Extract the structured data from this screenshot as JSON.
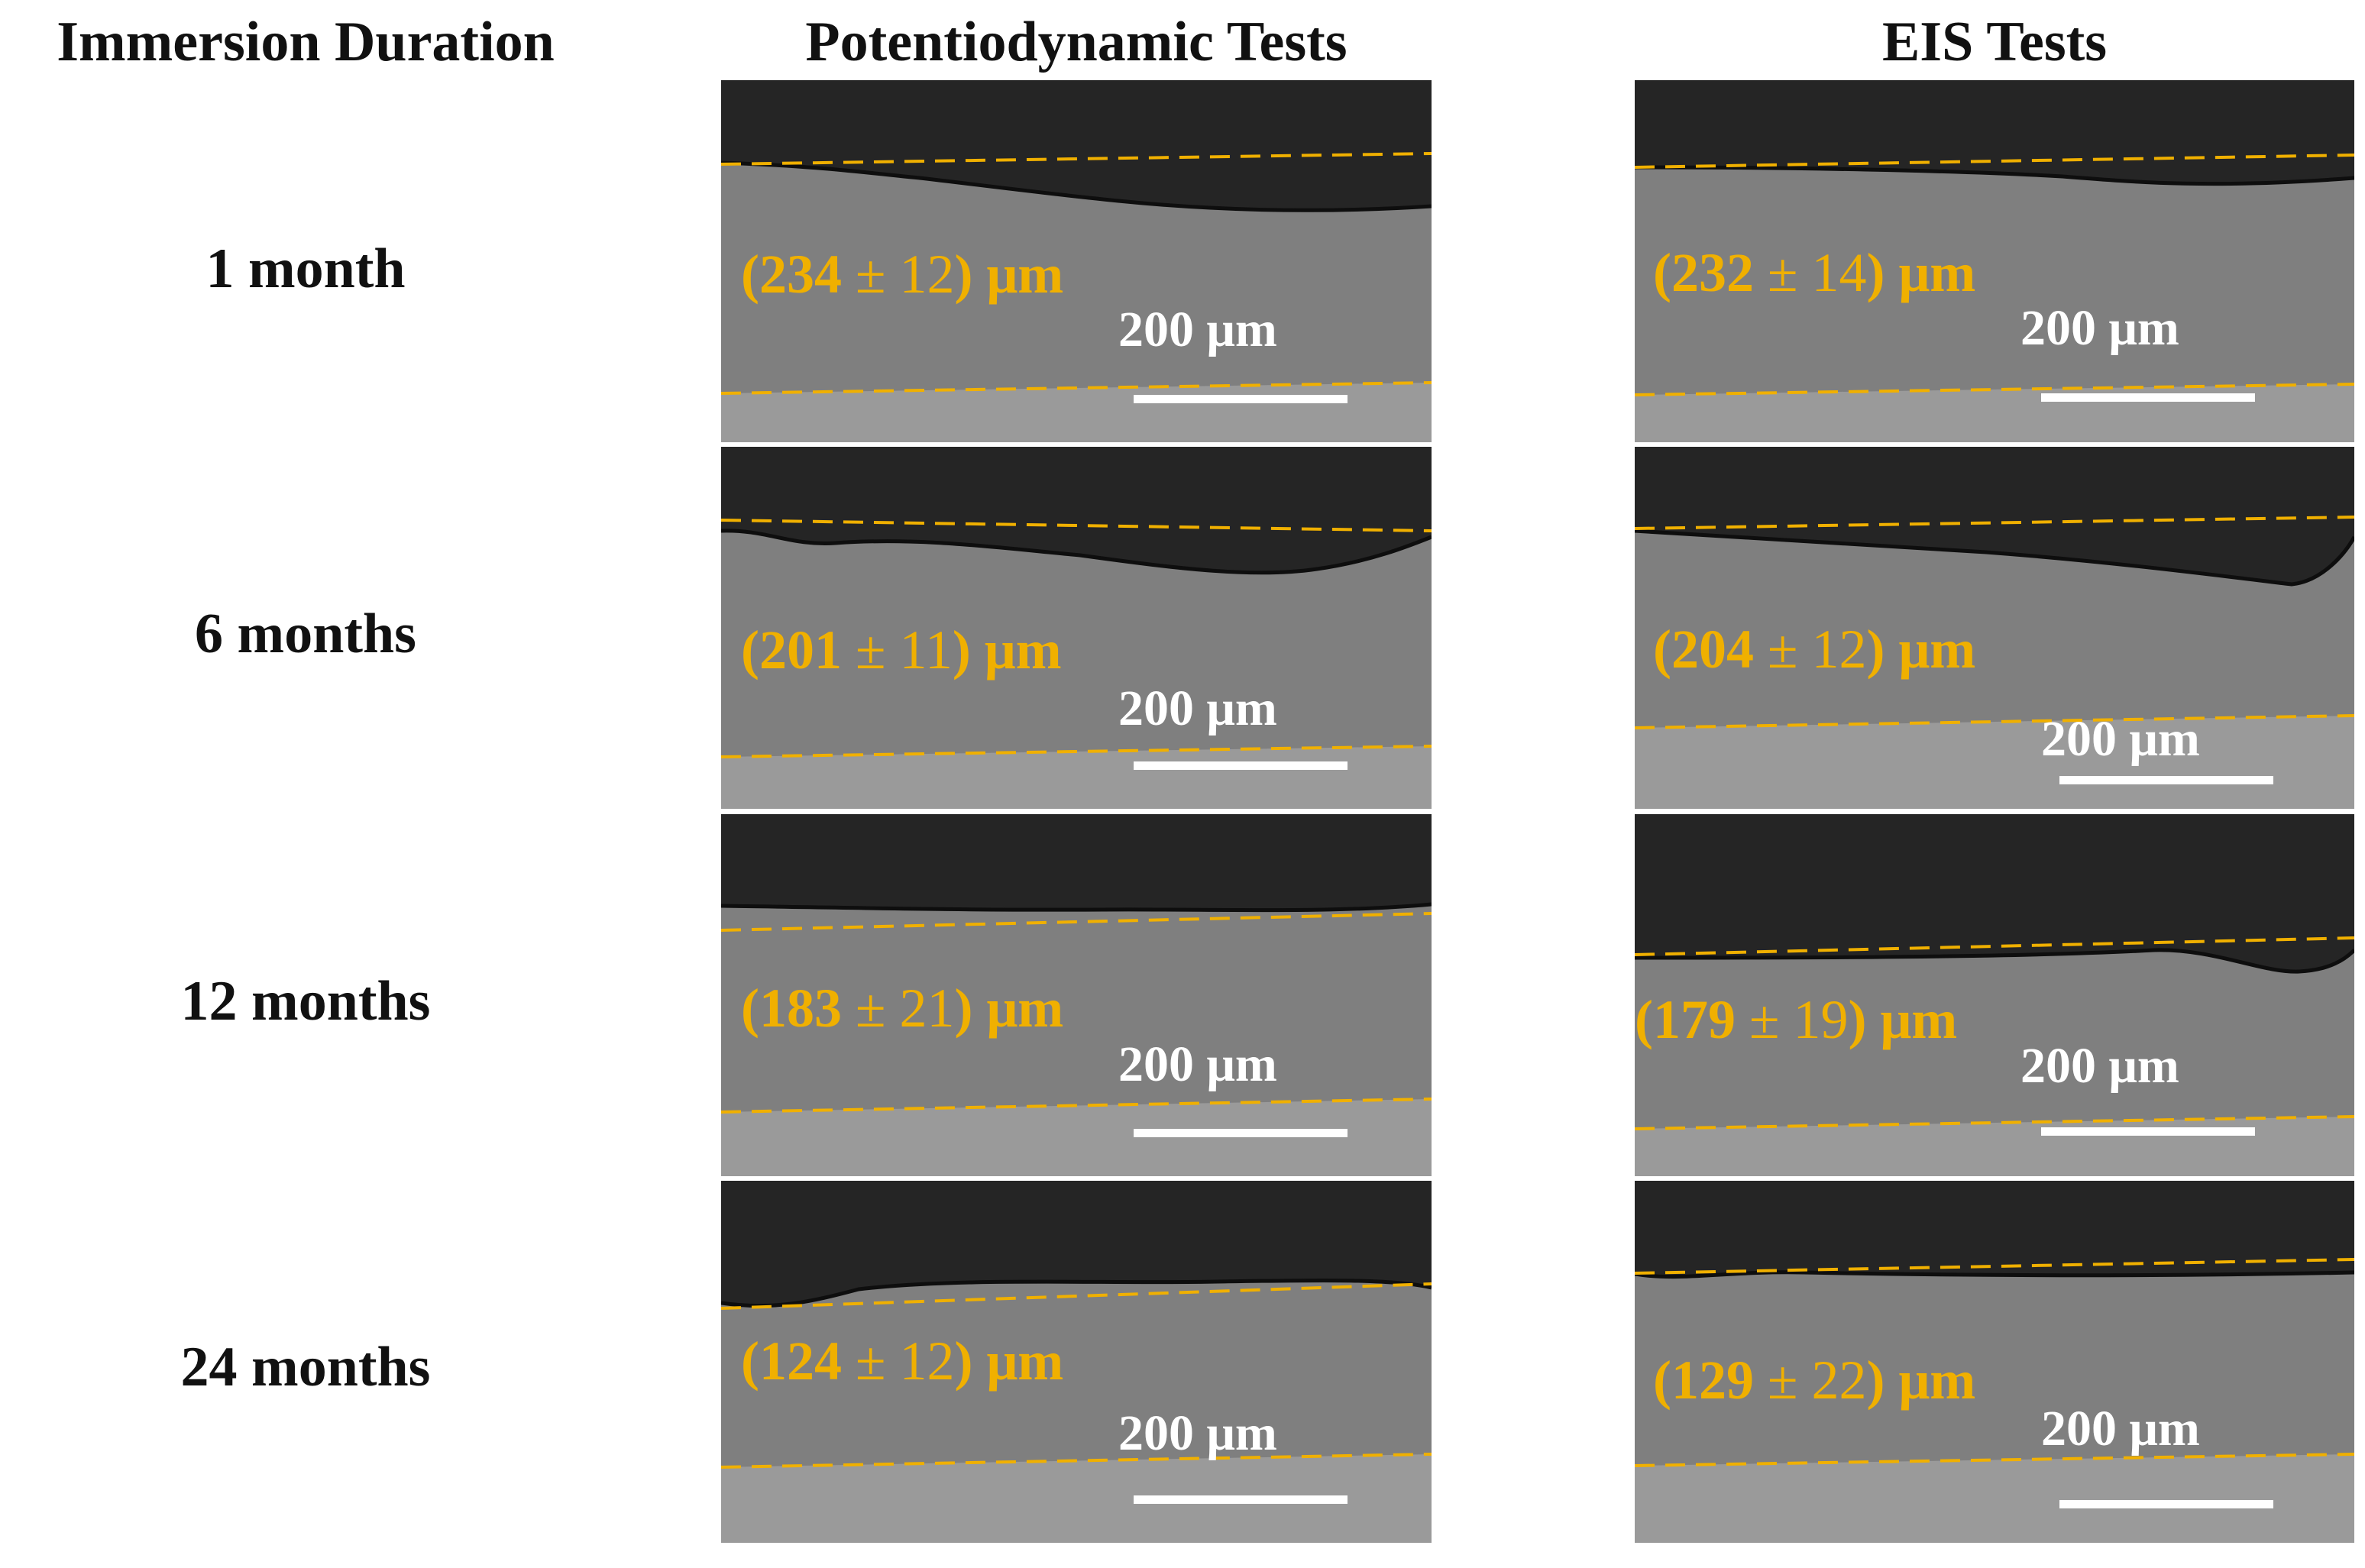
{
  "headers": {
    "duration": "Immersion Duration",
    "potentiodynamic": "Potentiodynamic Tests",
    "eis": "EIS Tests"
  },
  "rows": [
    {
      "label": "1 month"
    },
    {
      "label": "6 months"
    },
    {
      "label": "12 months"
    },
    {
      "label": "24 months"
    }
  ],
  "panels": {
    "potentiodynamic": [
      {
        "value": "234",
        "pm": "±",
        "err": "12",
        "unit": "μm",
        "scale": "200 μm"
      },
      {
        "value": "201",
        "pm": "±",
        "err": "11",
        "unit": "μm",
        "scale": "200 μm"
      },
      {
        "value": "183",
        "pm": "±",
        "err": "21",
        "unit": "μm",
        "scale": "200 μm"
      },
      {
        "value": "124",
        "pm": "±",
        "err": "12",
        "unit": "μm",
        "scale": "200 μm"
      }
    ],
    "eis": [
      {
        "value": "232",
        "pm": "±",
        "err": "14",
        "unit": "μm",
        "scale": "200 μm"
      },
      {
        "value": "204",
        "pm": "±",
        "err": "12",
        "unit": "μm",
        "scale": "200 μm"
      },
      {
        "value": "179",
        "pm": "±",
        "err": "19",
        "unit": "μm",
        "scale": "200 μm"
      },
      {
        "value": "129",
        "pm": "±",
        "err": "22",
        "unit": "μm",
        "scale": "200 μm"
      }
    ]
  },
  "colors": {
    "annotation": "#f0b000",
    "dark_region": "#252525",
    "coating": "#7f7f7f",
    "substrate": "#9a9a9a"
  }
}
